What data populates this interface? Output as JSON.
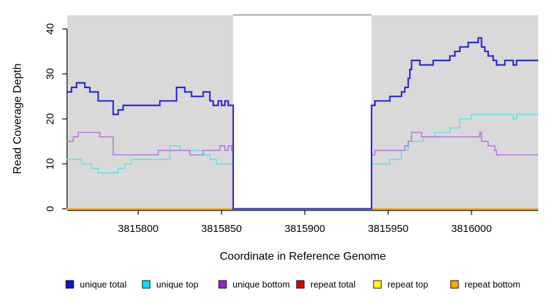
{
  "figure": {
    "background": "#ffffff",
    "panel_bg": "#d9d9d9",
    "axis_color": "#000000",
    "gap_top_border_color": "#8f8f8f"
  },
  "chart_data": {
    "type": "line",
    "style": "step-after",
    "title": "",
    "xlabel": "Coordinate in Reference Genome",
    "ylabel": "Read Coverage Depth",
    "xlim": [
      3815757,
      3816040
    ],
    "ylim": [
      0,
      43
    ],
    "grid": false,
    "legend_position": "bottom",
    "panel_bg": "#d9d9d9",
    "masked_region": {
      "from": 3815857,
      "to": 3815940,
      "fill": "#ffffff",
      "top_border": "#8f8f8f",
      "note": "no-data gap, all unique series drop to 0"
    },
    "x_ticks": [
      {
        "value": 3815800,
        "label": "3815800"
      },
      {
        "value": 3815850,
        "label": "3815850"
      },
      {
        "value": 3815900,
        "label": "3815900"
      },
      {
        "value": 3815950,
        "label": "3815950"
      },
      {
        "value": 3816000,
        "label": "3816000"
      }
    ],
    "y_ticks": [
      {
        "value": 0,
        "label": "0"
      },
      {
        "value": 10,
        "label": "10"
      },
      {
        "value": 20,
        "label": "20"
      },
      {
        "value": 30,
        "label": "30"
      },
      {
        "value": 40,
        "label": "40"
      }
    ],
    "x_end": 3816040,
    "draw_order": [
      3,
      4,
      5,
      1,
      2,
      0
    ],
    "series": [
      {
        "name": "unique total",
        "color": "#1414cc",
        "line_color": "#2a2acf",
        "line_width": 2.2,
        "steps": [
          [
            3815757,
            26
          ],
          [
            3815760,
            27
          ],
          [
            3815763,
            28
          ],
          [
            3815768,
            27
          ],
          [
            3815771,
            26
          ],
          [
            3815776,
            24
          ],
          [
            3815785,
            21
          ],
          [
            3815788,
            22
          ],
          [
            3815791,
            23
          ],
          [
            3815813,
            24
          ],
          [
            3815823,
            27
          ],
          [
            3815828,
            26
          ],
          [
            3815832,
            25
          ],
          [
            3815839,
            26
          ],
          [
            3815843,
            24
          ],
          [
            3815845,
            23
          ],
          [
            3815848,
            24
          ],
          [
            3815850,
            23
          ],
          [
            3815852,
            24
          ],
          [
            3815854,
            23
          ],
          [
            3815857,
            0
          ],
          [
            3815940,
            23
          ],
          [
            3815942,
            24
          ],
          [
            3815951,
            25
          ],
          [
            3815958,
            26
          ],
          [
            3815960,
            27
          ],
          [
            3815962,
            29
          ],
          [
            3815963,
            31
          ],
          [
            3815964,
            33
          ],
          [
            3815969,
            32
          ],
          [
            3815977,
            33
          ],
          [
            3815987,
            34
          ],
          [
            3815990,
            35
          ],
          [
            3815993,
            36
          ],
          [
            3815998,
            37
          ],
          [
            3816004,
            38
          ],
          [
            3816006,
            36
          ],
          [
            3816008,
            35
          ],
          [
            3816010,
            34
          ],
          [
            3816013,
            33
          ],
          [
            3816015,
            32
          ],
          [
            3816020,
            33
          ],
          [
            3816025,
            32
          ],
          [
            3816027,
            33
          ]
        ]
      },
      {
        "name": "unique top",
        "color": "#00e5ee",
        "line_color": "#5fe3e6",
        "line_width": 1.6,
        "steps": [
          [
            3815757,
            11
          ],
          [
            3815766,
            10
          ],
          [
            3815772,
            9
          ],
          [
            3815776,
            8
          ],
          [
            3815788,
            9
          ],
          [
            3815792,
            10
          ],
          [
            3815796,
            11
          ],
          [
            3815819,
            14
          ],
          [
            3815825,
            13
          ],
          [
            3815839,
            12
          ],
          [
            3815843,
            11
          ],
          [
            3815847,
            10
          ],
          [
            3815857,
            0
          ],
          [
            3815940,
            10
          ],
          [
            3815951,
            11
          ],
          [
            3815958,
            13
          ],
          [
            3815962,
            15
          ],
          [
            3815971,
            16
          ],
          [
            3815978,
            17
          ],
          [
            3815987,
            18
          ],
          [
            3815993,
            20
          ],
          [
            3816000,
            21
          ],
          [
            3816025,
            20
          ],
          [
            3816027,
            21
          ]
        ]
      },
      {
        "name": "unique bottom",
        "color": "#a020d0",
        "line_color": "#b578dc",
        "line_width": 1.6,
        "steps": [
          [
            3815757,
            15
          ],
          [
            3815761,
            16
          ],
          [
            3815764,
            17
          ],
          [
            3815777,
            16
          ],
          [
            3815785,
            12
          ],
          [
            3815812,
            13
          ],
          [
            3815831,
            12
          ],
          [
            3815839,
            13
          ],
          [
            3815849,
            14
          ],
          [
            3815852,
            13
          ],
          [
            3815854,
            14
          ],
          [
            3815856,
            13
          ],
          [
            3815857,
            0
          ],
          [
            3815940,
            12
          ],
          [
            3815942,
            13
          ],
          [
            3815960,
            14
          ],
          [
            3815962,
            15
          ],
          [
            3815964,
            17
          ],
          [
            3815970,
            16
          ],
          [
            3816005,
            17
          ],
          [
            3816006,
            15
          ],
          [
            3816010,
            14
          ],
          [
            3816014,
            13
          ],
          [
            3816015,
            12
          ]
        ]
      },
      {
        "name": "repeat total",
        "color": "#dd0000",
        "line_color": "#dd0000",
        "line_width": 1.6,
        "steps": [
          [
            3815757,
            0
          ]
        ]
      },
      {
        "name": "repeat top",
        "color": "#ffff00",
        "line_color": "#ffff00",
        "line_width": 1.6,
        "steps": [
          [
            3815757,
            0
          ]
        ]
      },
      {
        "name": "repeat bottom",
        "color": "#ffa500",
        "line_color": "#ffa500",
        "line_width": 1.8,
        "steps": [
          [
            3815757,
            0
          ]
        ]
      }
    ]
  }
}
